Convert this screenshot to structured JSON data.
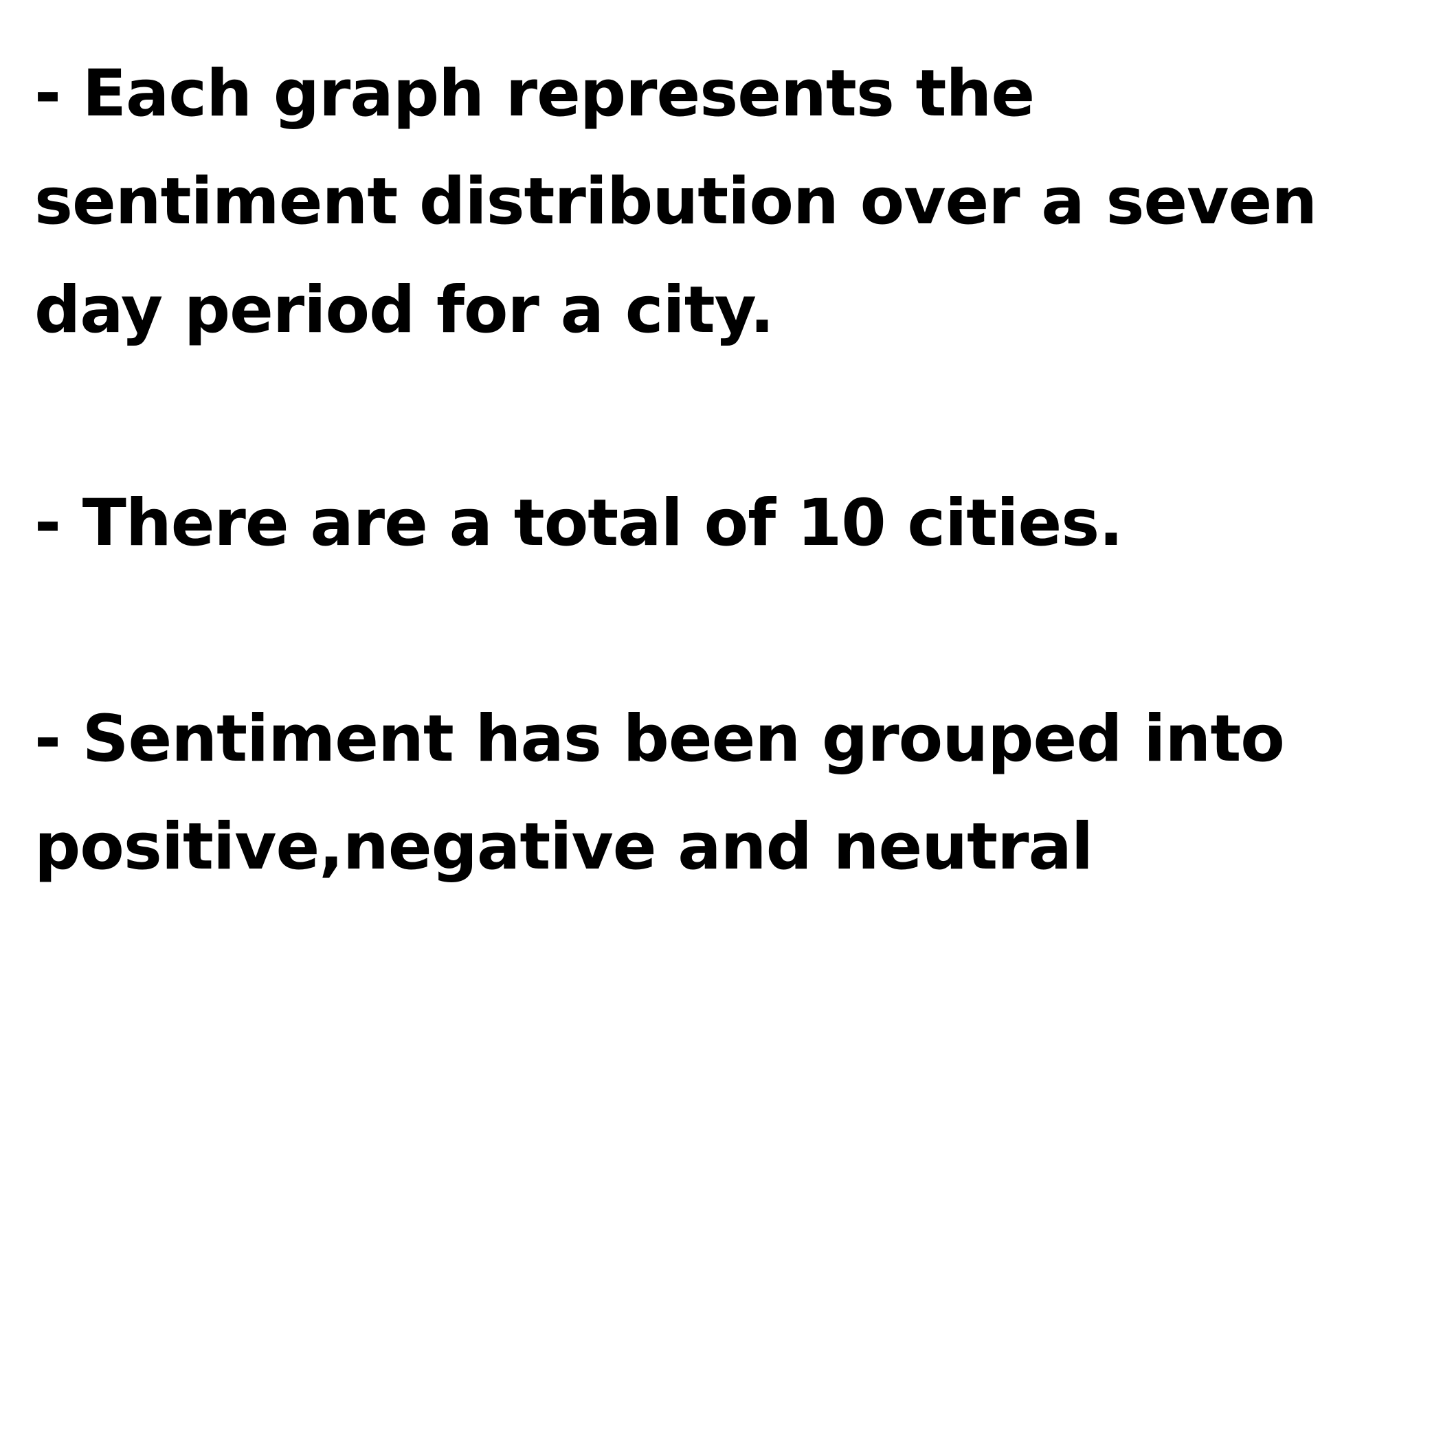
{
  "notes": {
    "bullet1": {
      "line1": "- Each graph represents the",
      "line2": "sentiment distribution over a seven",
      "line3": "day period for a city."
    },
    "bullet2": {
      "line1": "- There are a total of 10 cities."
    },
    "bullet3": {
      "line1": "- Sentiment has been grouped into",
      "line2": "positive,negative and neutral"
    }
  },
  "colors": {
    "background": "#ffffff",
    "text": "#000000"
  }
}
